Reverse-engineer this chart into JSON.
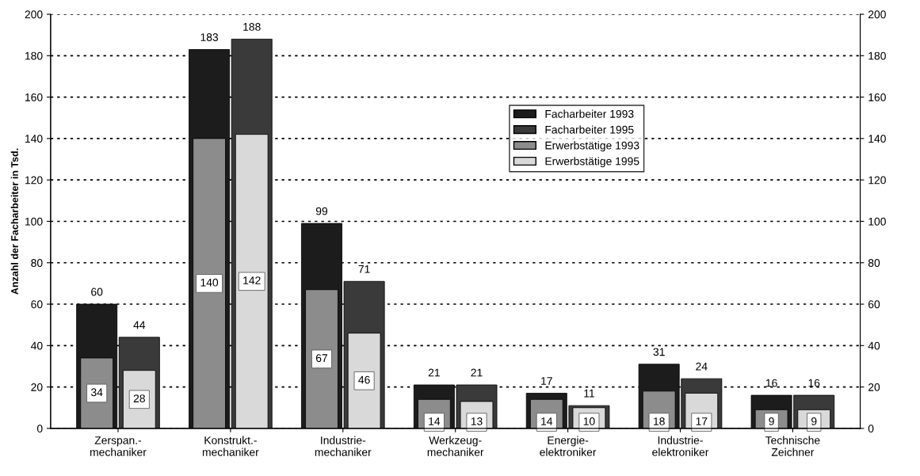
{
  "chart_data": {
    "type": "bar",
    "ylabel": "Anzahl der Facharbeiter in Tsd.",
    "categories": [
      "Zerspan.-\nmechaniker",
      "Konstrukt.-\nmechaniker",
      "Industrie-\nmechaniker",
      "Werkzeug-\nmechaniker",
      "Energie-\nelektroniker",
      "Industrie-\nelektroniker",
      "Technische\nZeichner"
    ],
    "series": [
      {
        "name": "Facharbeiter 1993",
        "color": "#1c1c1c",
        "values": [
          60,
          183,
          99,
          21,
          17,
          31,
          16
        ]
      },
      {
        "name": "Facharbeiter 1995",
        "color": "#3a3a3a",
        "values": [
          44,
          188,
          71,
          21,
          11,
          24,
          16
        ]
      },
      {
        "name": "Erwerbstätige 1993",
        "color": "#8c8c8c",
        "values": [
          34,
          140,
          67,
          14,
          14,
          18,
          9
        ]
      },
      {
        "name": "Erwerbstätige 1995",
        "color": "#d9d9d9",
        "values": [
          28,
          142,
          46,
          13,
          10,
          17,
          9
        ]
      }
    ],
    "ylim": [
      0,
      200
    ],
    "yticks": [
      0,
      20,
      40,
      60,
      80,
      100,
      120,
      140,
      160,
      180,
      200
    ],
    "y2lim": [
      0,
      200
    ],
    "y2ticks": [
      0,
      20,
      40,
      60,
      80,
      100,
      120,
      140,
      160,
      180,
      200
    ],
    "grid": "y",
    "legend": "right",
    "data_labels": true
  }
}
